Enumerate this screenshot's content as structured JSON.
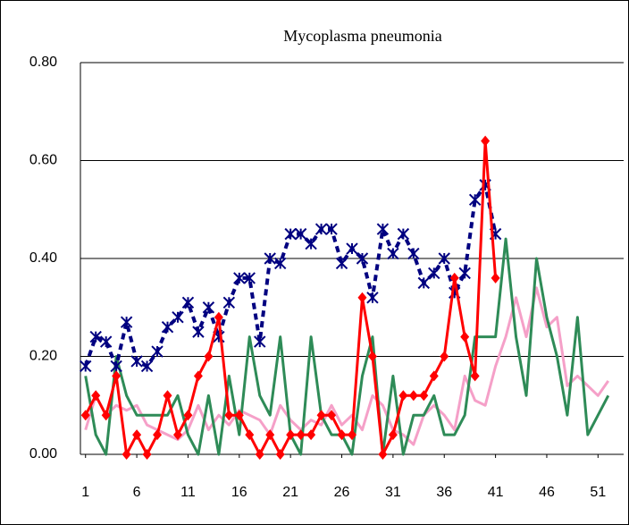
{
  "chart_data": {
    "type": "line",
    "title": "Mycoplasma pneumonia",
    "x": [
      1,
      2,
      3,
      4,
      5,
      6,
      7,
      8,
      9,
      10,
      11,
      12,
      13,
      14,
      15,
      16,
      17,
      18,
      19,
      20,
      21,
      22,
      23,
      24,
      25,
      26,
      27,
      28,
      29,
      30,
      31,
      32,
      33,
      34,
      35,
      36,
      37,
      38,
      39,
      40,
      41,
      42,
      43,
      44,
      45,
      46,
      47,
      48,
      49,
      50,
      51,
      52
    ],
    "xlim": [
      0.5,
      53.5
    ],
    "xticks": [
      1,
      6,
      11,
      16,
      21,
      26,
      31,
      36,
      41,
      46,
      51
    ],
    "ylim": [
      0,
      0.8
    ],
    "yticks": [
      {
        "value": 0,
        "label": "0.00"
      },
      {
        "value": 0.2,
        "label": "0.20"
      },
      {
        "value": 0.4,
        "label": "0.40"
      },
      {
        "value": 0.6,
        "label": "0.60"
      },
      {
        "value": 0.8,
        "label": "0.80"
      }
    ],
    "grid": true,
    "series": [
      {
        "color": "#f5a0c8",
        "marker": "none",
        "dash": false,
        "values": [
          0.05,
          0.12,
          0.08,
          0.1,
          0.09,
          0.1,
          0.06,
          0.05,
          0.04,
          0.03,
          0.05,
          0.1,
          0.05,
          0.08,
          0.06,
          0.09,
          0.08,
          0.07,
          0.04,
          0.1,
          0.07,
          0.05,
          0.07,
          0.06,
          0.1,
          0.06,
          0.08,
          0.05,
          0.12,
          0.1,
          0.05,
          0.04,
          0.02,
          0.08,
          0.1,
          0.08,
          0.05,
          0.16,
          0.11,
          0.1,
          0.18,
          0.24,
          0.32,
          0.24,
          0.34,
          0.26,
          0.28,
          0.14,
          0.16,
          0.14,
          0.12,
          0.15
        ]
      },
      {
        "color": "#2e8b57",
        "marker": "none",
        "dash": false,
        "values": [
          0.16,
          0.04,
          0,
          0.2,
          0.12,
          0.08,
          0.08,
          0.08,
          0.08,
          0.12,
          0.04,
          0,
          0.12,
          0,
          0.16,
          0.04,
          0.24,
          0.12,
          0.08,
          0.24,
          0.04,
          0,
          0.24,
          0.08,
          0.04,
          0.04,
          0,
          0.16,
          0.24,
          0,
          0.16,
          0,
          0.08,
          0.08,
          0.12,
          0.04,
          0.04,
          0.08,
          0.24,
          0.24,
          0.24,
          0.44,
          0.24,
          0.12,
          0.4,
          0.28,
          0.2,
          0.08,
          0.28,
          0.04,
          0.08,
          0.12
        ]
      },
      {
        "color": "#000080",
        "marker": "star",
        "dash": true,
        "values": [
          0.18,
          0.24,
          0.23,
          0.18,
          0.27,
          0.19,
          0.18,
          0.21,
          0.26,
          0.28,
          0.31,
          0.25,
          0.3,
          0.24,
          0.31,
          0.36,
          0.36,
          0.23,
          0.4,
          0.39,
          0.45,
          0.45,
          0.43,
          0.46,
          0.46,
          0.39,
          0.42,
          0.4,
          0.32,
          0.46,
          0.41,
          0.45,
          0.41,
          0.35,
          0.37,
          0.4,
          0.33,
          0.37,
          0.52,
          0.55,
          0.45,
          null,
          null,
          null,
          null,
          null,
          null,
          null,
          null,
          null,
          null,
          null
        ]
      },
      {
        "color": "#ff0000",
        "marker": "diamond",
        "dash": false,
        "values": [
          0.08,
          0.12,
          0.08,
          0.16,
          0,
          0.04,
          0,
          0.04,
          0.12,
          0.04,
          0.08,
          0.16,
          0.2,
          0.28,
          0.08,
          0.08,
          0.04,
          0,
          0.04,
          0,
          0.04,
          0.04,
          0.04,
          0.08,
          0.08,
          0.04,
          0.04,
          0.32,
          0.2,
          0,
          0.04,
          0.12,
          0.12,
          0.12,
          0.16,
          0.2,
          0.36,
          0.24,
          0.16,
          0.64,
          0.36,
          null,
          null,
          null,
          null,
          null,
          null,
          null,
          null,
          null,
          null,
          null
        ]
      }
    ]
  }
}
